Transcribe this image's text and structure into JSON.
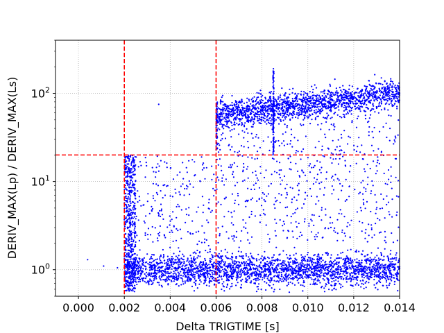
{
  "chart_data": {
    "type": "scatter",
    "title": "",
    "xlabel": "Delta TRIGTIME [s]",
    "ylabel": "DERIV_MAX(Lp) / DERIV_MAX(Ls)",
    "xlim": [
      -0.001,
      0.014
    ],
    "ylim": [
      0.5,
      400
    ],
    "yscale": "log",
    "grid": true,
    "marker_color": "#0000ff",
    "threshold_color": "#ff0000",
    "x_ticks": [
      "0.000",
      "0.002",
      "0.004",
      "0.006",
      "0.008",
      "0.010",
      "0.012",
      "0.014"
    ],
    "x_tick_values": [
      0.0,
      0.002,
      0.004,
      0.006,
      0.008,
      0.01,
      0.012,
      0.014
    ],
    "y_ticks": [
      {
        "base": "10",
        "exp": "0",
        "value": 1
      },
      {
        "base": "10",
        "exp": "1",
        "value": 10
      },
      {
        "base": "10",
        "exp": "2",
        "value": 100
      }
    ],
    "threshold_lines": {
      "vertical": [
        0.002,
        0.006
      ],
      "horizontal": [
        20
      ]
    },
    "clusters": [
      {
        "region": "low band",
        "x_range": [
          0.002,
          0.014
        ],
        "y_center": 1.0,
        "y_spread": "0.6-2.5",
        "density": "very high"
      },
      {
        "region": "high band",
        "x_range": [
          0.006,
          0.014
        ],
        "y_center": 80,
        "y_spread": "20-150",
        "density": "high"
      },
      {
        "region": "vertical streak",
        "x": 0.0085,
        "y_range": [
          20,
          190
        ],
        "density": "medium"
      },
      {
        "region": "column near 0.0022",
        "x_range": [
          0.002,
          0.0025
        ],
        "y_range": [
          0.5,
          20
        ],
        "density": "high"
      },
      {
        "region": "sparse middle",
        "x_range": [
          0.002,
          0.014
        ],
        "y_range": [
          2,
          20
        ],
        "density": "low"
      }
    ],
    "sample_points": [
      {
        "x": 0.0004,
        "y": 1.3
      },
      {
        "x": 0.0011,
        "y": 1.1
      },
      {
        "x": 0.0017,
        "y": 1.05
      },
      {
        "x": 0.0035,
        "y": 75
      },
      {
        "x": 0.0085,
        "y": 190
      }
    ]
  }
}
